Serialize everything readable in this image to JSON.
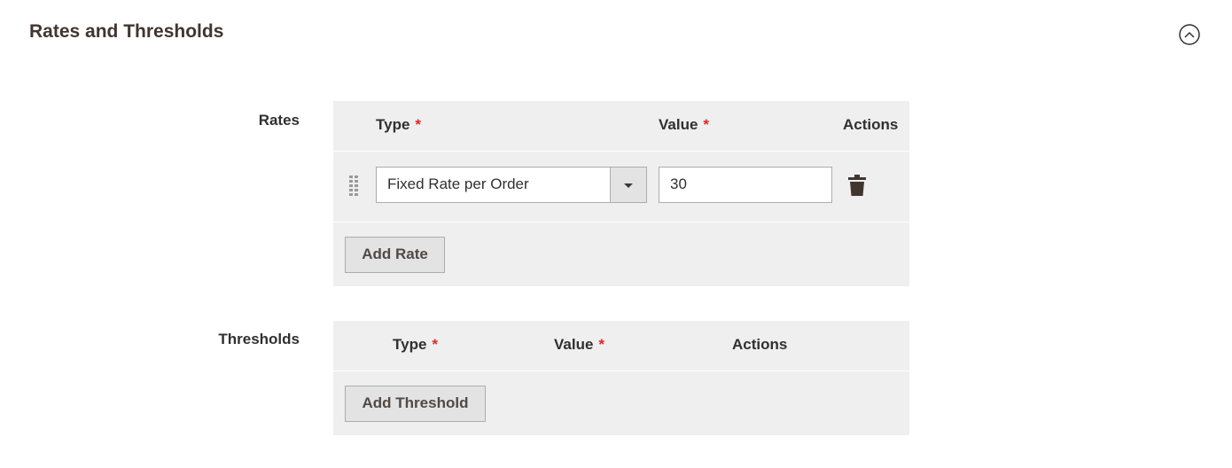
{
  "section": {
    "title": "Rates and Thresholds"
  },
  "required_mark": "*",
  "rates": {
    "label": "Rates",
    "columns": [
      "Type",
      "Value",
      "Actions"
    ],
    "rows": [
      {
        "type": "Fixed Rate per Order",
        "value": "30"
      }
    ],
    "button": "Add Rate"
  },
  "thresholds": {
    "label": "Thresholds",
    "columns": [
      "Type",
      "Value",
      "Actions"
    ],
    "button": "Add Threshold"
  }
}
